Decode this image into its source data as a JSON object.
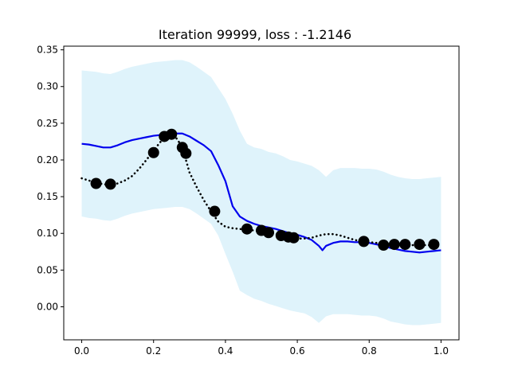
{
  "chart_data": {
    "type": "line",
    "title": "Iteration 99999, loss : -1.2146",
    "xlabel": "",
    "ylabel": "",
    "xlim": [
      -0.05,
      1.05
    ],
    "ylim": [
      -0.045,
      0.355
    ],
    "xticks": [
      0.0,
      0.2,
      0.4,
      0.6,
      0.8,
      1.0
    ],
    "xtick_labels": [
      "0.0",
      "0.2",
      "0.4",
      "0.6",
      "0.8",
      "1.0"
    ],
    "yticks": [
      0.0,
      0.05,
      0.1,
      0.15,
      0.2,
      0.25,
      0.3,
      0.35
    ],
    "ytick_labels": [
      "0.00",
      "0.05",
      "0.10",
      "0.15",
      "0.20",
      "0.25",
      "0.30",
      "0.35"
    ],
    "grid": false,
    "band": {
      "color": "#dff3fb",
      "x": [
        0.0,
        0.02,
        0.04,
        0.06,
        0.08,
        0.1,
        0.12,
        0.14,
        0.16,
        0.18,
        0.2,
        0.22,
        0.24,
        0.26,
        0.28,
        0.3,
        0.32,
        0.34,
        0.36,
        0.38,
        0.4,
        0.42,
        0.44,
        0.46,
        0.48,
        0.5,
        0.52,
        0.54,
        0.56,
        0.58,
        0.6,
        0.62,
        0.64,
        0.66,
        0.68,
        0.7,
        0.72,
        0.74,
        0.76,
        0.78,
        0.8,
        0.82,
        0.84,
        0.86,
        0.88,
        0.9,
        0.92,
        0.94,
        0.96,
        0.98,
        1.0
      ],
      "upper": [
        0.322,
        0.321,
        0.32,
        0.318,
        0.317,
        0.32,
        0.324,
        0.327,
        0.329,
        0.331,
        0.333,
        0.334,
        0.335,
        0.336,
        0.336,
        0.333,
        0.327,
        0.32,
        0.313,
        0.298,
        0.283,
        0.263,
        0.24,
        0.222,
        0.217,
        0.215,
        0.211,
        0.209,
        0.205,
        0.2,
        0.198,
        0.195,
        0.192,
        0.186,
        0.177,
        0.186,
        0.189,
        0.189,
        0.189,
        0.188,
        0.188,
        0.187,
        0.184,
        0.18,
        0.177,
        0.175,
        0.174,
        0.174,
        0.175,
        0.176,
        0.177
      ],
      "lower": [
        0.123,
        0.121,
        0.12,
        0.118,
        0.117,
        0.12,
        0.124,
        0.127,
        0.129,
        0.131,
        0.133,
        0.134,
        0.135,
        0.136,
        0.136,
        0.133,
        0.127,
        0.12,
        0.113,
        0.097,
        0.072,
        0.048,
        0.022,
        0.016,
        0.011,
        0.008,
        0.004,
        0.001,
        -0.002,
        -0.005,
        -0.007,
        -0.009,
        -0.014,
        -0.022,
        -0.013,
        -0.01,
        -0.01,
        -0.01,
        -0.011,
        -0.012,
        -0.012,
        -0.013,
        -0.016,
        -0.02,
        -0.022,
        -0.024,
        -0.025,
        -0.025,
        -0.024,
        -0.023,
        -0.022
      ]
    },
    "series": [
      {
        "color": "#0000ee",
        "style": "solid",
        "x": [
          0.0,
          0.02,
          0.04,
          0.06,
          0.08,
          0.1,
          0.12,
          0.14,
          0.16,
          0.18,
          0.2,
          0.22,
          0.24,
          0.26,
          0.28,
          0.3,
          0.32,
          0.34,
          0.36,
          0.38,
          0.4,
          0.42,
          0.44,
          0.46,
          0.48,
          0.5,
          0.52,
          0.54,
          0.56,
          0.58,
          0.6,
          0.62,
          0.64,
          0.66,
          0.67,
          0.68,
          0.7,
          0.72,
          0.74,
          0.76,
          0.78,
          0.8,
          0.82,
          0.84,
          0.86,
          0.88,
          0.9,
          0.92,
          0.94,
          0.96,
          0.98,
          1.0
        ],
        "values": [
          0.222,
          0.221,
          0.219,
          0.217,
          0.217,
          0.22,
          0.224,
          0.227,
          0.229,
          0.231,
          0.233,
          0.234,
          0.235,
          0.236,
          0.236,
          0.232,
          0.226,
          0.22,
          0.212,
          0.193,
          0.171,
          0.137,
          0.123,
          0.117,
          0.113,
          0.11,
          0.108,
          0.106,
          0.103,
          0.1,
          0.098,
          0.095,
          0.091,
          0.083,
          0.077,
          0.083,
          0.087,
          0.089,
          0.089,
          0.088,
          0.088,
          0.087,
          0.085,
          0.083,
          0.08,
          0.078,
          0.076,
          0.075,
          0.074,
          0.075,
          0.076,
          0.077
        ]
      },
      {
        "color": "#000000",
        "style": "dotted",
        "x": [
          0.0,
          0.02,
          0.04,
          0.06,
          0.08,
          0.1,
          0.12,
          0.14,
          0.16,
          0.18,
          0.2,
          0.22,
          0.24,
          0.25,
          0.26,
          0.27,
          0.28,
          0.29,
          0.3,
          0.32,
          0.34,
          0.36,
          0.38,
          0.4,
          0.42,
          0.44,
          0.46,
          0.48,
          0.5,
          0.52,
          0.54,
          0.56,
          0.58,
          0.6,
          0.62,
          0.64,
          0.66,
          0.68,
          0.7,
          0.72,
          0.74,
          0.76,
          0.78,
          0.8,
          0.82,
          0.84,
          0.86,
          0.88,
          0.9,
          0.92,
          0.94,
          0.96,
          0.98,
          1.0
        ],
        "values": [
          0.175,
          0.172,
          0.169,
          0.167,
          0.166,
          0.168,
          0.172,
          0.178,
          0.188,
          0.2,
          0.213,
          0.225,
          0.232,
          0.235,
          0.232,
          0.225,
          0.215,
          0.2,
          0.183,
          0.163,
          0.145,
          0.13,
          0.116,
          0.109,
          0.107,
          0.106,
          0.105,
          0.104,
          0.103,
          0.101,
          0.099,
          0.096,
          0.094,
          0.093,
          0.093,
          0.094,
          0.097,
          0.099,
          0.099,
          0.097,
          0.094,
          0.091,
          0.089,
          0.088,
          0.087,
          0.086,
          0.085,
          0.085,
          0.084,
          0.084,
          0.084,
          0.084,
          0.084,
          0.084
        ]
      }
    ],
    "points": {
      "color": "#000000",
      "x": [
        0.04,
        0.08,
        0.2,
        0.23,
        0.25,
        0.28,
        0.29,
        0.37,
        0.46,
        0.5,
        0.52,
        0.555,
        0.575,
        0.59,
        0.785,
        0.84,
        0.87,
        0.9,
        0.94,
        0.98
      ],
      "y": [
        0.168,
        0.167,
        0.21,
        0.232,
        0.235,
        0.217,
        0.209,
        0.13,
        0.106,
        0.104,
        0.101,
        0.097,
        0.095,
        0.094,
        0.089,
        0.084,
        0.085,
        0.085,
        0.085,
        0.085
      ]
    }
  }
}
